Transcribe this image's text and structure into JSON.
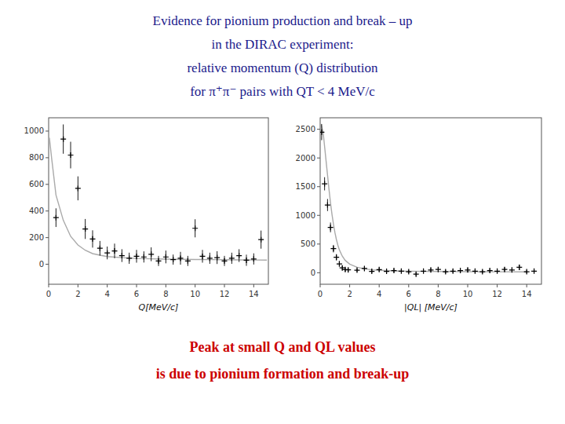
{
  "title": {
    "lines": [
      "Evidence for pionium production and break – up",
      "in the DIRAC experiment:",
      "relative momentum (Q) distribution",
      "for π⁺π⁻ pairs with QT < 4 MeV/c"
    ],
    "color": "#1a1a8c"
  },
  "annotations": {
    "lines": [
      "Peak at small Q and QL values",
      "is due to pionium formation and break-up"
    ],
    "color": "#cc0000"
  },
  "chart_data": [
    {
      "type": "scatter",
      "x_label": "Q[MeV/c]",
      "xlim": [
        0,
        15
      ],
      "ylim": [
        -150,
        1100
      ],
      "xticks": [
        0,
        2,
        4,
        6,
        8,
        10,
        12,
        14
      ],
      "yticks": [
        0,
        200,
        400,
        600,
        800,
        1000
      ],
      "grid": false,
      "series": [
        {
          "type": "scatter",
          "marker": "plus",
          "color": "#000000",
          "x": [
            0.5,
            1.0,
            1.5,
            2.0,
            2.5,
            3.0,
            3.5,
            4.0,
            4.5,
            5.0,
            5.5,
            6.0,
            6.5,
            7.0,
            7.5,
            8.0,
            8.5,
            9.0,
            9.5,
            10.0,
            10.5,
            11.0,
            11.5,
            12.0,
            12.5,
            13.0,
            13.5,
            14.0,
            14.5
          ],
          "values": [
            350,
            940,
            820,
            570,
            265,
            190,
            120,
            85,
            100,
            65,
            45,
            60,
            55,
            75,
            25,
            55,
            35,
            45,
            25,
            270,
            60,
            45,
            50,
            25,
            45,
            65,
            30,
            40,
            185
          ],
          "yerr": [
            70,
            110,
            100,
            90,
            75,
            65,
            55,
            48,
            55,
            48,
            42,
            48,
            42,
            52,
            38,
            48,
            38,
            48,
            38,
            68,
            48,
            42,
            48,
            38,
            42,
            48,
            42,
            42,
            68
          ]
        },
        {
          "type": "line",
          "line_style": "solid",
          "color": "#aaaaaa",
          "x": [
            0.05,
            0.2,
            0.5,
            1.0,
            1.5,
            2.0,
            2.5,
            3.0,
            3.5,
            4.0,
            5.0,
            6.0,
            7.0,
            8.0,
            9.0,
            10.0,
            11.0,
            12.0,
            13.0,
            14.0,
            14.9
          ],
          "values": [
            950,
            800,
            520,
            330,
            210,
            145,
            105,
            80,
            68,
            58,
            50,
            44,
            41,
            39,
            37,
            36,
            35,
            34,
            33,
            32,
            31
          ]
        }
      ]
    },
    {
      "type": "scatter",
      "x_label": "|QL| [MeV/c]",
      "xlim": [
        0,
        15
      ],
      "ylim": [
        -200,
        2700
      ],
      "xticks": [
        0,
        2,
        4,
        6,
        8,
        10,
        12,
        14
      ],
      "yticks": [
        0,
        500,
        1000,
        1500,
        2000,
        2500
      ],
      "grid": false,
      "series": [
        {
          "type": "scatter",
          "marker": "plus",
          "color": "#000000",
          "x": [
            0.1,
            0.3,
            0.5,
            0.7,
            0.9,
            1.1,
            1.3,
            1.5,
            1.7,
            1.9,
            2.5,
            3.0,
            3.5,
            4.0,
            4.5,
            5.0,
            5.5,
            6.0,
            6.5,
            7.0,
            7.5,
            8.0,
            8.5,
            9.0,
            9.5,
            10.0,
            10.5,
            11.0,
            11.5,
            12.0,
            12.5,
            13.0,
            13.5,
            14.0,
            14.5
          ],
          "values": [
            2450,
            1550,
            1180,
            790,
            420,
            270,
            155,
            85,
            55,
            50,
            45,
            75,
            25,
            55,
            25,
            38,
            28,
            18,
            -25,
            28,
            48,
            58,
            18,
            28,
            38,
            48,
            28,
            18,
            38,
            28,
            58,
            48,
            95,
            18,
            28
          ],
          "yerr": [
            140,
            115,
            105,
            85,
            65,
            55,
            48,
            42,
            38,
            35,
            32,
            38,
            32,
            38,
            32,
            35,
            32,
            32,
            32,
            32,
            35,
            38,
            32,
            32,
            35,
            38,
            32,
            32,
            35,
            32,
            38,
            35,
            48,
            32,
            32
          ]
        },
        {
          "type": "line",
          "line_style": "solid",
          "color": "#aaaaaa",
          "x": [
            0.02,
            0.1,
            0.2,
            0.3,
            0.4,
            0.5,
            0.6,
            0.7,
            0.8,
            0.9,
            1.0,
            1.1,
            1.2,
            1.3,
            1.5,
            1.7,
            2.0,
            2.5,
            3.0,
            3.5,
            4.0,
            5.0,
            6.0,
            7.0,
            8.0,
            9.0,
            10.0,
            12.0,
            14.0
          ],
          "values": [
            2600,
            2550,
            2450,
            2200,
            1950,
            1700,
            1450,
            1220,
            1020,
            850,
            700,
            580,
            480,
            400,
            290,
            215,
            150,
            95,
            68,
            52,
            42,
            32,
            27,
            24,
            22,
            20,
            19,
            17,
            16
          ]
        }
      ]
    }
  ]
}
